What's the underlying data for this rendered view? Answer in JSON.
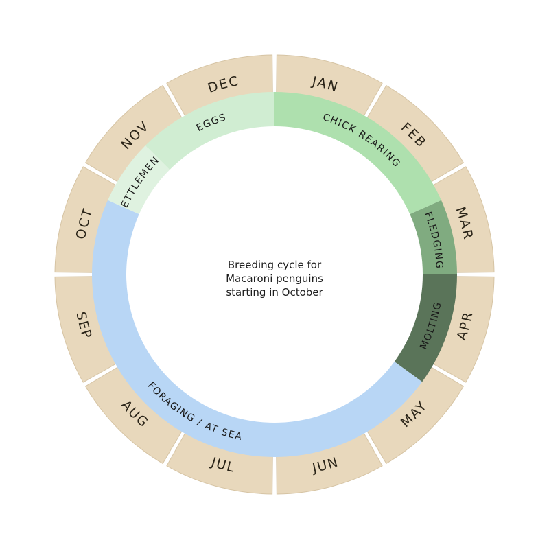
{
  "center_caption": [
    "Breeding cycle for",
    "Macaroni penguins",
    "starting in October"
  ],
  "months": [
    "JAN",
    "FEB",
    "MAR",
    "APR",
    "MAY",
    "JUN",
    "JUL",
    "AUG",
    "SEP",
    "OCT",
    "NOV",
    "DEC"
  ],
  "phases": [
    {
      "label": "SETTLEMENT",
      "start_month": 9.8,
      "end_month": 10.5,
      "color": "#dff2e0",
      "text_color": "#1a1a1a"
    },
    {
      "label": "EGGS",
      "start_month": 10.5,
      "end_month": 12.0,
      "color": "#d0edd2",
      "text_color": "#1a1a1a"
    },
    {
      "label": "CHICK REARING",
      "start_month": 0.0,
      "end_month": 2.2,
      "color": "#aee0ae",
      "text_color": "#1a1a1a"
    },
    {
      "label": "FLEDGING",
      "start_month": 2.2,
      "end_month": 3.0,
      "color": "#80ab80",
      "text_color": "#1a1a1a"
    },
    {
      "label": "MOLTING",
      "start_month": 3.0,
      "end_month": 4.2,
      "color": "#5a7459",
      "text_color": "#1a1a1a"
    },
    {
      "label": "FORAGING / AT SEA",
      "start_month": 4.2,
      "end_month": 9.8,
      "color": "#b8d6f5",
      "text_color": "#1a1a1a"
    }
  ],
  "colors": {
    "month_tile": "#e8d8bc",
    "month_text": "#2a2418"
  }
}
